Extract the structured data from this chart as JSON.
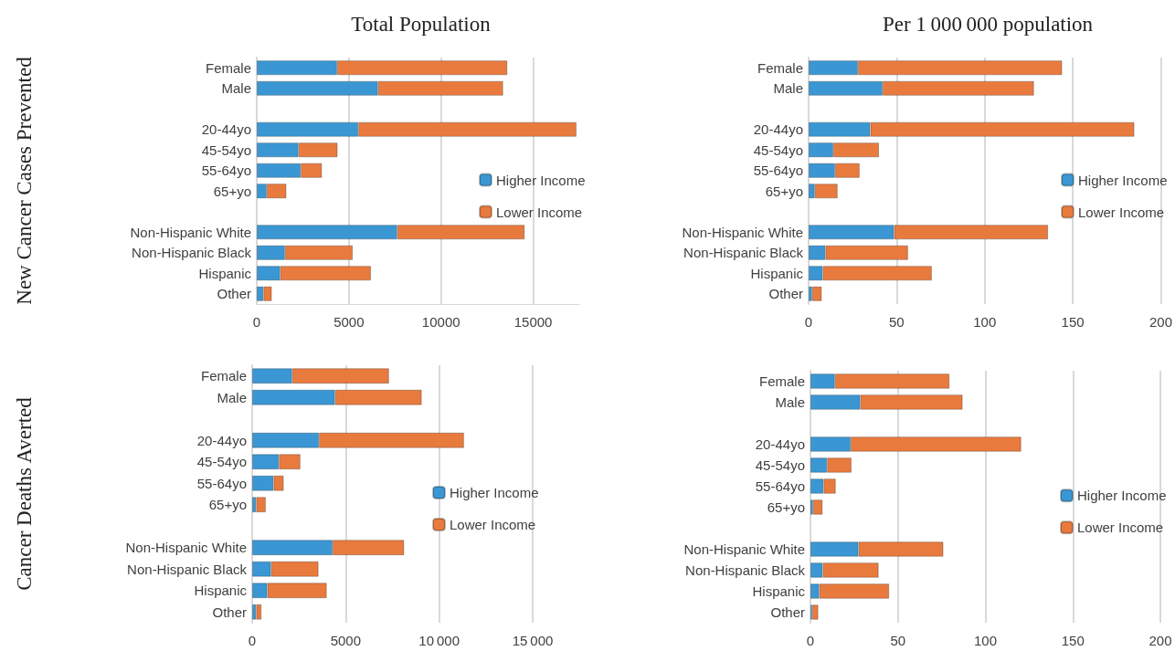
{
  "chart_data": [
    {
      "type": "bar",
      "orientation": "horizontal",
      "stacked": true,
      "title": "Total Population",
      "ylabel": "New Cancer Cases Prevented",
      "categories": [
        "Female",
        "Male",
        null,
        "20-44yo",
        "45-54yo",
        "55-64yo",
        "65+yo",
        null,
        "Non-Hispanic White",
        "Non-Hispanic Black",
        "Hispanic",
        "Other"
      ],
      "series": [
        {
          "name": "Higher Income",
          "color": "#3b97d3",
          "values": [
            4360,
            6580,
            null,
            5510,
            2270,
            2390,
            540,
            null,
            7620,
            1530,
            1270,
            360
          ]
        },
        {
          "name": "Lower Income",
          "color": "#e97a3e",
          "values": [
            9240,
            6790,
            null,
            11840,
            2120,
            1150,
            1070,
            null,
            6920,
            3680,
            4930,
            460
          ]
        }
      ],
      "xlim": [
        0,
        17500
      ],
      "xticks": [
        0,
        5000,
        10000,
        15000
      ],
      "grid": "x",
      "legend": "right"
    },
    {
      "type": "bar",
      "orientation": "horizontal",
      "stacked": true,
      "title": "Per 1 000 000 population",
      "categories": [
        "Female",
        "Male",
        null,
        "20-44yo",
        "45-54yo",
        "55-64yo",
        "65+yo",
        null,
        "Non-Hispanic White",
        "Non-Hispanic Black",
        "Hispanic",
        "Other"
      ],
      "series": [
        {
          "name": "Higher Income",
          "color": "#3b97d3",
          "values": [
            28,
            42,
            null,
            35,
            14,
            15,
            3.5,
            null,
            48.5,
            9.5,
            8,
            2
          ]
        },
        {
          "name": "Lower Income",
          "color": "#e97a3e",
          "values": [
            116,
            86,
            null,
            150,
            26,
            14,
            13,
            null,
            87.5,
            47,
            62,
            5.5
          ]
        }
      ],
      "xlim": [
        0,
        200
      ],
      "xticks": [
        0,
        50,
        100,
        150,
        200
      ],
      "grid": "x",
      "legend": "right"
    },
    {
      "type": "bar",
      "orientation": "horizontal",
      "stacked": true,
      "ylabel": "Cancer Deaths Averted",
      "categories": [
        "Female",
        "Male",
        null,
        "20-44yo",
        "45-54yo",
        "55-64yo",
        "65+yo",
        null,
        "Non-Hispanic White",
        "Non-Hispanic Black",
        "Hispanic",
        "Other"
      ],
      "series": [
        {
          "name": "Higher Income",
          "color": "#3b97d3",
          "values": [
            2140,
            4430,
            null,
            3570,
            1430,
            1140,
            210,
            null,
            4300,
            1010,
            810,
            210
          ]
        },
        {
          "name": "Lower Income",
          "color": "#e97a3e",
          "values": [
            5180,
            4640,
            null,
            7760,
            1150,
            550,
            520,
            null,
            3830,
            2540,
            3180,
            290
          ]
        }
      ],
      "xlim": [
        0,
        15000
      ],
      "xticks": [
        0,
        5000,
        {
          "value": 10000,
          "label": "10 000"
        },
        {
          "value": 15000,
          "label": "15 000"
        }
      ],
      "grid": "x",
      "legend": "right"
    },
    {
      "type": "bar",
      "orientation": "horizontal",
      "stacked": true,
      "categories": [
        "Female",
        "Male",
        null,
        "20-44yo",
        "45-54yo",
        "55-64yo",
        "65+yo",
        null,
        "Non-Hispanic White",
        "Non-Hispanic Black",
        "Hispanic",
        "Other"
      ],
      "series": [
        {
          "name": "Higher Income",
          "color": "#3b97d3",
          "values": [
            14,
            28.5,
            null,
            23,
            9.5,
            7.5,
            1.5,
            null,
            27.5,
            7,
            5,
            1
          ]
        },
        {
          "name": "Lower Income",
          "color": "#e97a3e",
          "values": [
            65.5,
            58.5,
            null,
            97.5,
            14,
            7,
            5.5,
            null,
            48.5,
            32,
            40,
            3.5
          ]
        }
      ],
      "xlim": [
        0,
        200
      ],
      "xticks": [
        0,
        50,
        100,
        150,
        200
      ],
      "grid": "x",
      "legend": "right"
    }
  ]
}
